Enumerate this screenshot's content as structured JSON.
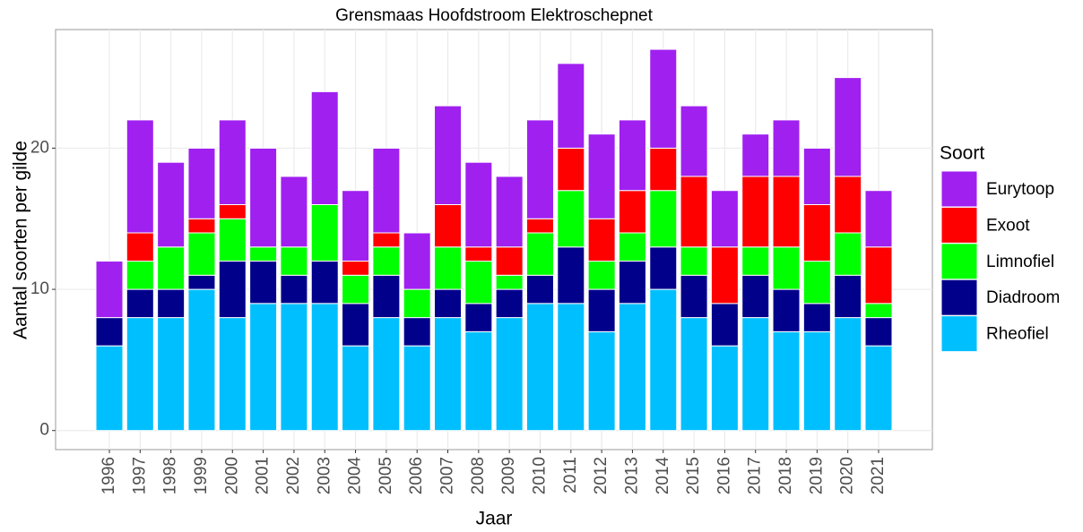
{
  "chart_data": {
    "type": "stacked_bar",
    "title": "Grensmaas Hoofdstroom Elektroschepnet",
    "x_label": "Jaar",
    "y_label": "Aantal soorten per gilde",
    "legend_title": "Soort",
    "legend_position": "right",
    "grid": true,
    "categories": [
      "1996",
      "1997",
      "1998",
      "1999",
      "2000",
      "2001",
      "2002",
      "2003",
      "2004",
      "2005",
      "2006",
      "2007",
      "2008",
      "2009",
      "2010",
      "2011",
      "2012",
      "2013",
      "2014",
      "2015",
      "2016",
      "2017",
      "2018",
      "2019",
      "2020",
      "2021"
    ],
    "ylim": [
      -1.35,
      28.4
    ],
    "yticks": [
      0,
      10,
      20
    ],
    "series": [
      {
        "name": "Rheofiel",
        "color": "#00bfff",
        "values": [
          6,
          8,
          8,
          10,
          8,
          9,
          9,
          9,
          6,
          8,
          6,
          8,
          7,
          8,
          9,
          9,
          7,
          9,
          10,
          8,
          6,
          8,
          7,
          7,
          8,
          6
        ]
      },
      {
        "name": "Diadroom",
        "color": "#00008b",
        "values": [
          2,
          2,
          2,
          1,
          4,
          3,
          2,
          3,
          3,
          3,
          2,
          2,
          2,
          2,
          2,
          4,
          3,
          3,
          3,
          3,
          3,
          3,
          3,
          2,
          3,
          2
        ]
      },
      {
        "name": "Limnofiel",
        "color": "#00ff00",
        "values": [
          0,
          2,
          3,
          3,
          3,
          1,
          2,
          4,
          2,
          2,
          2,
          3,
          3,
          1,
          3,
          4,
          2,
          2,
          4,
          2,
          0,
          2,
          3,
          3,
          3,
          1
        ]
      },
      {
        "name": "Exoot",
        "color": "#ff0000",
        "values": [
          0,
          2,
          0,
          1,
          1,
          0,
          0,
          0,
          1,
          1,
          0,
          3,
          1,
          2,
          1,
          3,
          3,
          3,
          3,
          5,
          4,
          5,
          5,
          4,
          4,
          4
        ]
      },
      {
        "name": "Eurytoop",
        "color": "#a020f0",
        "values": [
          4,
          8,
          6,
          5,
          6,
          7,
          5,
          8,
          5,
          6,
          4,
          7,
          6,
          5,
          7,
          6,
          6,
          5,
          7,
          5,
          4,
          3,
          4,
          4,
          7,
          4
        ]
      }
    ]
  }
}
